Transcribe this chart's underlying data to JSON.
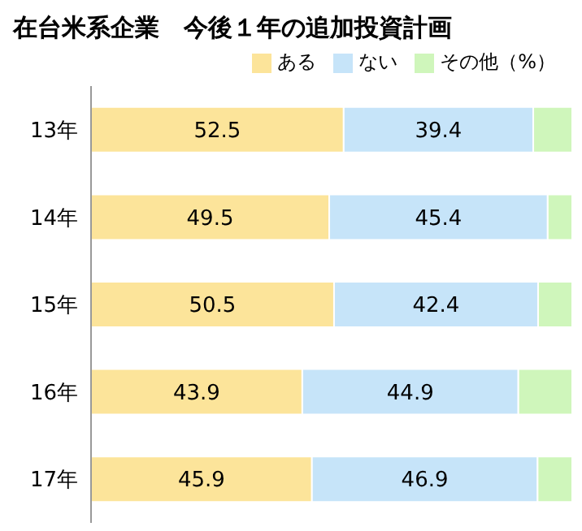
{
  "chart_data": {
    "type": "bar",
    "title": "在台米系企業　今後１年の追加投資計画",
    "orientation": "horizontal",
    "stacked": true,
    "categories": [
      "13年",
      "14年",
      "15年",
      "16年",
      "17年"
    ],
    "series": [
      {
        "name": "ある",
        "color": "#fce49a",
        "values": [
          52.5,
          49.5,
          50.5,
          43.9,
          45.9
        ],
        "value_labels": [
          "52.5",
          "49.5",
          "50.5",
          "43.9",
          "45.9"
        ]
      },
      {
        "name": "ない",
        "color": "#c6e4f9",
        "values": [
          39.4,
          45.4,
          42.4,
          44.9,
          46.9
        ],
        "value_labels": [
          "39.4",
          "45.4",
          "42.4",
          "44.9",
          "46.9"
        ]
      },
      {
        "name": "その他（%）",
        "color": "#cff6bb",
        "values": [
          8.1,
          5.1,
          7.1,
          11.2,
          7.2
        ]
      }
    ],
    "xlim": [
      0,
      100
    ],
    "tick_labels": "y",
    "legend": "top right"
  }
}
